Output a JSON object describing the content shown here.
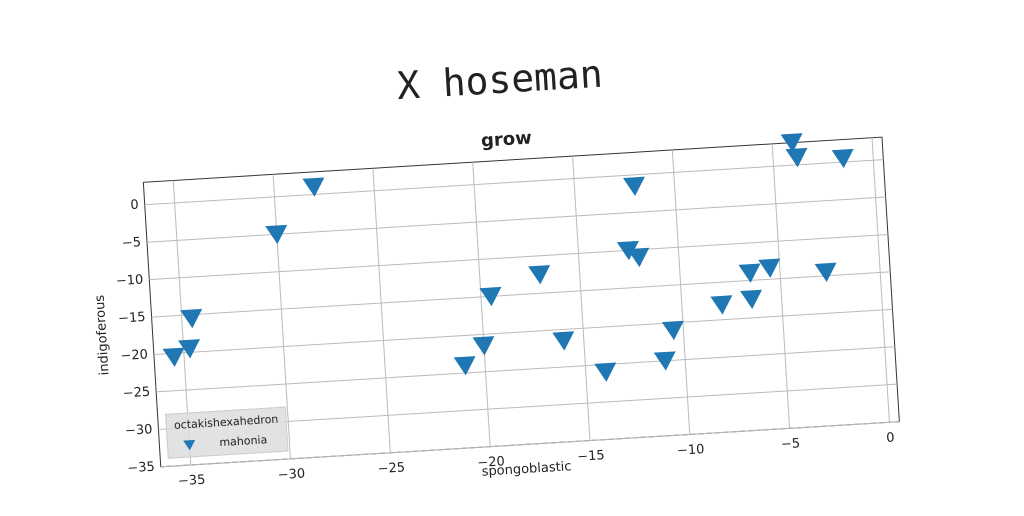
{
  "chart_data": {
    "type": "scatter",
    "title": "X hoseman",
    "subtitle": "grow",
    "x_label": "spongoblastic",
    "y_label": "indigoferous",
    "x": [
      -35.5,
      -34.7,
      -34.5,
      -30,
      -28,
      -21,
      -20,
      -19.5,
      -17,
      -16,
      -14,
      -12.5,
      -12,
      -12,
      -11,
      -10.5,
      -8,
      -6.5,
      -6.5,
      -5.5,
      -4,
      -3.8,
      -1.5,
      -2.7
    ],
    "series": [
      {
        "name": "mahonia",
        "color": "#1f77b4",
        "values": [
          -20.5,
          -19.5,
          -15.5,
          -5,
          1,
          -24,
          -21.5,
          -15,
          -12.5,
          -21.5,
          -26,
          -10,
          -11,
          -1.5,
          -25,
          -21,
          -18,
          -17.5,
          -14,
          -13.5,
          3,
          1,
          0.5,
          -14.5
        ]
      }
    ],
    "xlim": [
      -36.5,
      0.5
    ],
    "ylim": [
      -35,
      3
    ],
    "xticks": [
      {
        "value": -35,
        "label": "−35"
      },
      {
        "value": -30,
        "label": "−30"
      },
      {
        "value": -25,
        "label": "−25"
      },
      {
        "value": -20,
        "label": "−20"
      },
      {
        "value": -15,
        "label": "−15"
      },
      {
        "value": -10,
        "label": "−10"
      },
      {
        "value": -5,
        "label": "−5"
      },
      0
    ],
    "yticks": [
      {
        "value": -35,
        "label": "−35"
      },
      {
        "value": -30,
        "label": "−30"
      },
      {
        "value": -25,
        "label": "−25"
      },
      {
        "value": -20,
        "label": "−20"
      },
      {
        "value": -15,
        "label": "−15"
      },
      {
        "value": -10,
        "label": "−10"
      },
      {
        "value": -5,
        "label": "−5"
      },
      0
    ],
    "grid": true,
    "legend_title": "octakishexahedron",
    "legend_position": "lower left"
  }
}
